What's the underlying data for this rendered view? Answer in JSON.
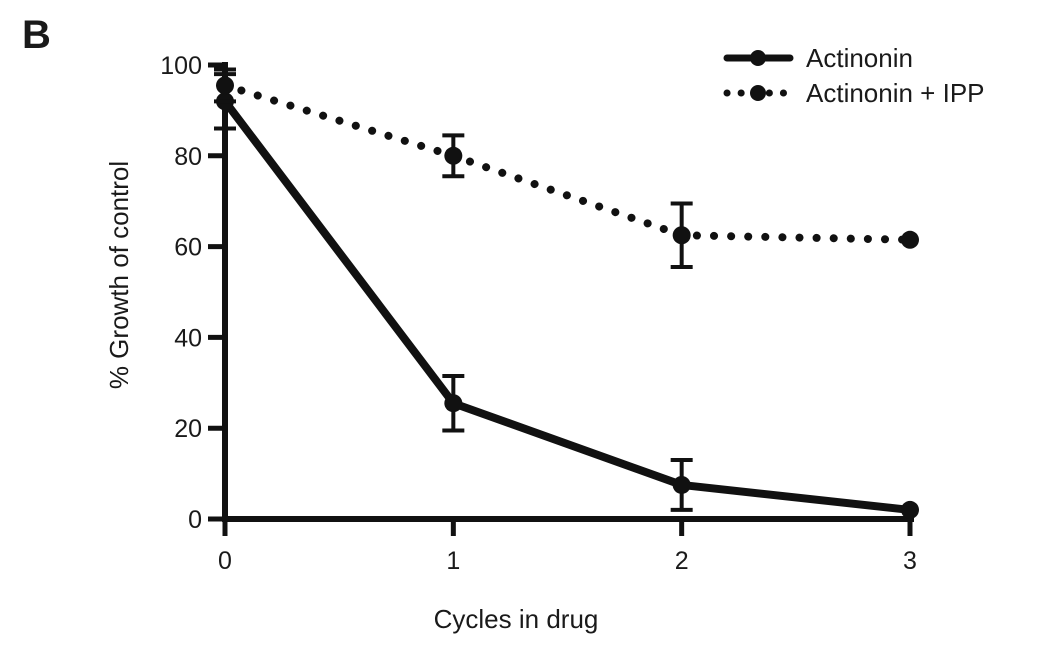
{
  "panel_label": "B",
  "chart_data": {
    "type": "line",
    "xlabel": "Cycles in drug",
    "ylabel": "% Growth of control",
    "x": [
      0,
      1,
      2,
      3
    ],
    "xticks": [
      "0",
      "1",
      "2",
      "3"
    ],
    "xlim": [
      0,
      3
    ],
    "yticks": [
      "0",
      "20",
      "40",
      "60",
      "80",
      "100"
    ],
    "ylim": [
      0,
      100
    ],
    "grid": false,
    "legend_position": "top-right",
    "series": [
      {
        "name": "Actinonin",
        "line_style": "solid",
        "color": "#111111",
        "values": [
          92,
          25.5,
          7.5,
          2
        ],
        "error": [
          6,
          6,
          5.5,
          0
        ]
      },
      {
        "name": "Actinonin + IPP",
        "line_style": "dotted",
        "color": "#111111",
        "values": [
          95.5,
          80,
          62.5,
          61.5
        ],
        "error": [
          3.5,
          4.5,
          7,
          0
        ]
      }
    ]
  }
}
